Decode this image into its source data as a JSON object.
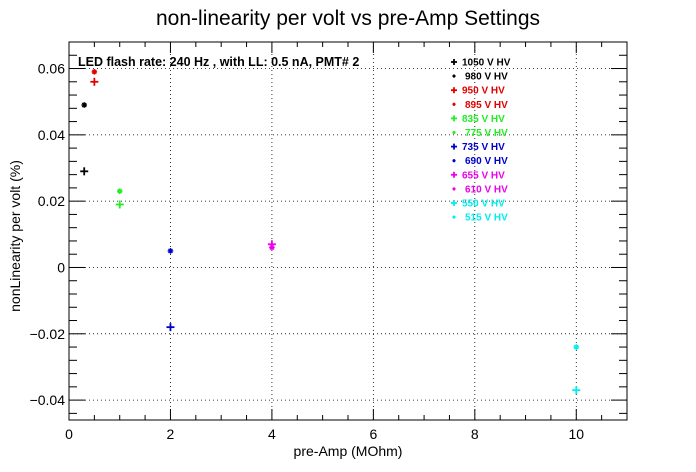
{
  "chart_data": {
    "type": "scatter",
    "title": "non-linearity per volt vs pre-Amp Settings",
    "xlabel": "pre-Amp (MOhm)",
    "ylabel": "nonLinearity per volt (%)",
    "annotation": "LED flash rate: 240 Hz , with LL: 0.5 nA, PMT# 2",
    "xlim": [
      0,
      11
    ],
    "ylim": [
      -0.046,
      0.068
    ],
    "xticks": [
      0,
      2,
      4,
      6,
      8,
      10
    ],
    "xtick_labels": [
      "0",
      "2",
      "4",
      "6",
      "8",
      "10"
    ],
    "yticks": [
      -0.04,
      -0.02,
      0,
      0.02,
      0.04,
      0.06
    ],
    "ytick_labels": [
      "−0.04",
      "−0.02",
      "0",
      "0.02",
      "0.04",
      "0.06"
    ],
    "grid": true,
    "legend_position": "top-right",
    "series": [
      {
        "name": "1050 V HV",
        "color": "#000000",
        "marker": "plus",
        "points": [
          [
            0.3,
            0.029
          ]
        ]
      },
      {
        "name": "980 V HV",
        "color": "#000000",
        "marker": "star",
        "points": [
          [
            0.3,
            0.049
          ]
        ]
      },
      {
        "name": "950 V HV",
        "color": "#e00000",
        "marker": "plus",
        "points": [
          [
            0.5,
            0.056
          ]
        ]
      },
      {
        "name": "895 V HV",
        "color": "#e00000",
        "marker": "star",
        "points": [
          [
            0.5,
            0.059
          ]
        ]
      },
      {
        "name": "835 V HV",
        "color": "#22ee22",
        "marker": "plus",
        "points": [
          [
            1.0,
            0.019
          ]
        ]
      },
      {
        "name": "775 V HV",
        "color": "#22ee22",
        "marker": "star",
        "points": [
          [
            1.0,
            0.023
          ]
        ]
      },
      {
        "name": "735 V HV",
        "color": "#0000cc",
        "marker": "plus",
        "points": [
          [
            2.0,
            -0.018
          ]
        ]
      },
      {
        "name": "690 V HV",
        "color": "#0000cc",
        "marker": "star",
        "points": [
          [
            2.0,
            0.005
          ]
        ]
      },
      {
        "name": "655 V HV",
        "color": "#ee00ee",
        "marker": "plus",
        "points": [
          [
            4.0,
            0.007
          ]
        ]
      },
      {
        "name": "610 V HV",
        "color": "#ee00ee",
        "marker": "star",
        "points": [
          [
            4.0,
            0.006
          ]
        ]
      },
      {
        "name": "550 V HV",
        "color": "#00eeee",
        "marker": "plus",
        "points": [
          [
            10.0,
            -0.037
          ]
        ]
      },
      {
        "name": "515 V HV",
        "color": "#00eeee",
        "marker": "star",
        "points": [
          [
            10.0,
            -0.024
          ]
        ]
      }
    ]
  }
}
